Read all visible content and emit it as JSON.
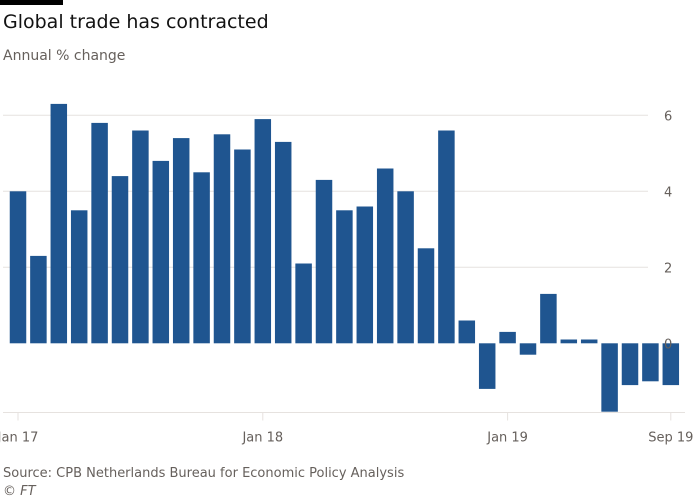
{
  "header": {
    "title": "Global trade has contracted",
    "subtitle": "Annual % change"
  },
  "footer": {
    "source": "Source: CPB Netherlands Bureau for Economic Policy Analysis",
    "copyright": "© FT"
  },
  "colors": {
    "bar": "#1f5590",
    "grid": "#e6e2df",
    "axis_text": "#66605c"
  },
  "chart_data": {
    "type": "bar",
    "title": "Global trade has contracted",
    "subtitle": "Annual % change",
    "xlabel": "",
    "ylabel": "Annual % change",
    "ylim": [
      -1.8,
      6.3
    ],
    "yticks": [
      0,
      2,
      4,
      6
    ],
    "ytick_position": "right",
    "grid": true,
    "x_ticks": [
      {
        "label": "Jan 17",
        "index": 0
      },
      {
        "label": "Jan 18",
        "index": 12
      },
      {
        "label": "Jan 19",
        "index": 24
      },
      {
        "label": "Sep 19",
        "index": 32
      }
    ],
    "categories": [
      "Jan 17",
      "Feb 17",
      "Mar 17",
      "Apr 17",
      "May 17",
      "Jun 17",
      "Jul 17",
      "Aug 17",
      "Sep 17",
      "Oct 17",
      "Nov 17",
      "Dec 17",
      "Jan 18",
      "Feb 18",
      "Mar 18",
      "Apr 18",
      "May 18",
      "Jun 18",
      "Jul 18",
      "Aug 18",
      "Sep 18",
      "Oct 18",
      "Nov 18",
      "Dec 18",
      "Jan 19",
      "Feb 19",
      "Mar 19",
      "Apr 19",
      "May 19",
      "Jun 19",
      "Jul 19",
      "Aug 19",
      "Sep 19"
    ],
    "values": [
      4.0,
      2.3,
      6.3,
      3.5,
      5.8,
      4.4,
      5.6,
      4.8,
      5.4,
      4.5,
      5.5,
      5.1,
      5.9,
      5.3,
      2.1,
      4.3,
      3.5,
      3.6,
      4.6,
      4.0,
      2.5,
      5.6,
      0.6,
      -1.2,
      0.3,
      -0.3,
      1.3,
      0.1,
      0.1,
      -1.8,
      -1.1,
      -1.0,
      -1.1
    ]
  }
}
